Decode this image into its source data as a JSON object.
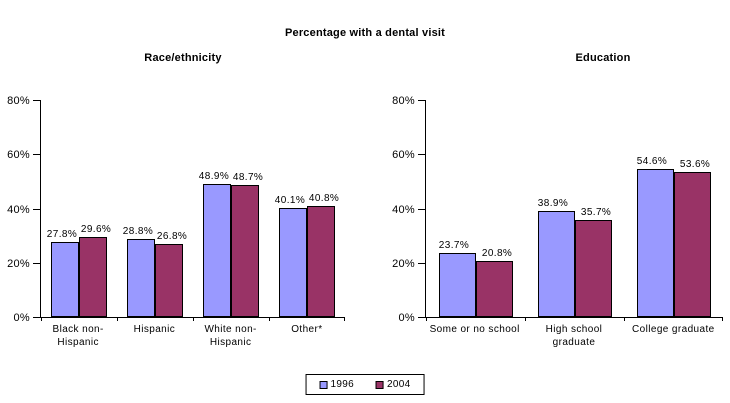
{
  "title": "Percentage with a dental visit",
  "legend": {
    "items": [
      {
        "label": "1996",
        "color": "#9999FF"
      },
      {
        "label": "2004",
        "color": "#993366"
      }
    ]
  },
  "colors": {
    "series_1996_fill": "#9999FF",
    "series_2004_fill": "#993366",
    "bar_border": "#000000",
    "axis": "#000000",
    "background": "#FFFFFF"
  },
  "chart_data": [
    {
      "type": "bar",
      "title": "Race/ethnicity",
      "categories": [
        "Black non-Hispanic",
        "Hispanic",
        "White non-Hispanic",
        "Other*"
      ],
      "series": [
        {
          "name": "1996",
          "values": [
            27.8,
            28.8,
            48.9,
            40.1
          ]
        },
        {
          "name": "2004",
          "values": [
            29.6,
            26.8,
            48.7,
            40.8
          ]
        }
      ],
      "xlabel": "",
      "ylabel": "",
      "ylim": [
        0,
        80
      ],
      "yticks": [
        0,
        20,
        40,
        60,
        80
      ],
      "ytick_labels": [
        "0%",
        "20%",
        "40%",
        "60%",
        "80%"
      ],
      "value_suffix": "%",
      "grid": false,
      "data_labels": true,
      "legend_position": "bottom-center-shared"
    },
    {
      "type": "bar",
      "title": "Education",
      "categories": [
        "Some or no school",
        "High school graduate",
        "College graduate"
      ],
      "series": [
        {
          "name": "1996",
          "values": [
            23.7,
            38.9,
            54.6
          ]
        },
        {
          "name": "2004",
          "values": [
            20.8,
            35.7,
            53.6
          ]
        }
      ],
      "xlabel": "",
      "ylabel": "",
      "ylim": [
        0,
        80
      ],
      "yticks": [
        0,
        20,
        40,
        60,
        80
      ],
      "ytick_labels": [
        "0%",
        "20%",
        "40%",
        "60%",
        "80%"
      ],
      "value_suffix": "%",
      "grid": false,
      "data_labels": true,
      "legend_position": "bottom-center-shared"
    }
  ]
}
